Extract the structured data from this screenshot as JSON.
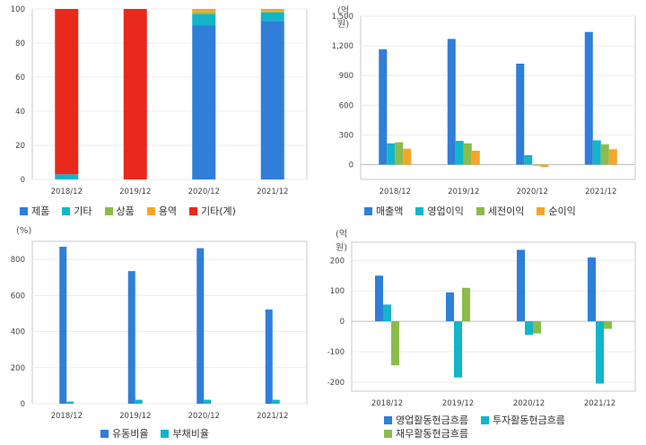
{
  "chart_data": [
    {
      "type": "bar",
      "stacked": true,
      "unit": "",
      "categories": [
        "2018/12",
        "2019/12",
        "2020/12",
        "2021/12"
      ],
      "series": [
        {
          "name": "제품",
          "color": "#2f7ed8",
          "values": [
            0,
            0,
            90.5,
            93
          ]
        },
        {
          "name": "기타",
          "color": "#13b5c8",
          "values": [
            3,
            0,
            6.5,
            5
          ]
        },
        {
          "name": "상품",
          "color": "#8bbc4a",
          "values": [
            0,
            0,
            1,
            0.5
          ]
        },
        {
          "name": "용역",
          "color": "#f4a62a",
          "values": [
            0,
            0,
            2,
            1.5
          ]
        },
        {
          "name": "기타(계)",
          "color": "#e8291c",
          "values": [
            97,
            100,
            0,
            0
          ]
        }
      ],
      "ylim": [
        0,
        100
      ],
      "yticks": [
        0,
        20,
        40,
        60,
        80,
        100
      ],
      "grid": true,
      "legend_position": "bottom"
    },
    {
      "type": "bar",
      "unit": "(억원)",
      "categories": [
        "2018/12",
        "2019/12",
        "2020/12",
        "2021/12"
      ],
      "series": [
        {
          "name": "매출액",
          "color": "#2f7ed8",
          "values": [
            1165,
            1270,
            1020,
            1340
          ]
        },
        {
          "name": "영업이익",
          "color": "#13b5c8",
          "values": [
            215,
            240,
            95,
            245
          ]
        },
        {
          "name": "세전이익",
          "color": "#8bbc4a",
          "values": [
            225,
            215,
            -10,
            205
          ]
        },
        {
          "name": "순이익",
          "color": "#f4a62a",
          "values": [
            160,
            140,
            -25,
            155
          ]
        }
      ],
      "ylim": [
        -150,
        1500
      ],
      "yticks": [
        0,
        300,
        600,
        900,
        1200,
        1500
      ],
      "ytick_labels": [
        "0",
        "300",
        "600",
        "900",
        "1,200",
        "1,500"
      ],
      "grid": true,
      "legend_position": "bottom"
    },
    {
      "type": "bar",
      "unit": "(%)",
      "categories": [
        "2018/12",
        "2019/12",
        "2020/12",
        "2021/12"
      ],
      "series": [
        {
          "name": "유동비율",
          "color": "#2f7ed8",
          "values": [
            870,
            735,
            862,
            522
          ]
        },
        {
          "name": "부채비율",
          "color": "#13b5c8",
          "values": [
            12,
            22,
            22,
            22
          ]
        }
      ],
      "ylim": [
        0,
        900
      ],
      "yticks": [
        0,
        200,
        400,
        600,
        800
      ],
      "grid": true,
      "legend_position": "bottom"
    },
    {
      "type": "bar",
      "unit": "(억원)",
      "categories": [
        "2018/12",
        "2019/12",
        "2020/12",
        "2021/12"
      ],
      "series": [
        {
          "name": "영업활동현금흐름",
          "color": "#2f7ed8",
          "values": [
            150,
            95,
            235,
            210
          ]
        },
        {
          "name": "투자활동현금흐름",
          "color": "#13b5c8",
          "values": [
            55,
            -185,
            -45,
            -205
          ]
        },
        {
          "name": "재무활동현금흐름",
          "color": "#8bbc4a",
          "values": [
            -145,
            110,
            -40,
            -25
          ]
        }
      ],
      "ylim": [
        -230,
        260
      ],
      "yticks": [
        -200,
        -100,
        0,
        100,
        200
      ],
      "grid": true,
      "legend_position": "bottom"
    }
  ]
}
